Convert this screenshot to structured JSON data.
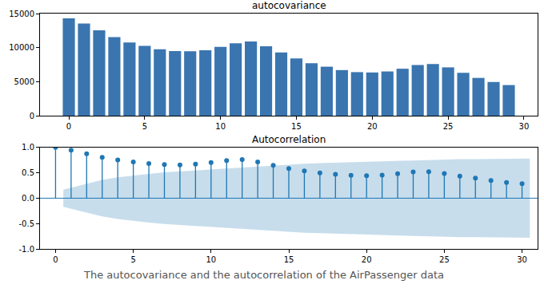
{
  "caption": "The autocovariance and the autocorrelation of the AirPassenger data",
  "chart_data": [
    {
      "type": "bar",
      "title": "autocovariance",
      "x": [
        0,
        1,
        2,
        3,
        4,
        5,
        6,
        7,
        8,
        9,
        10,
        11,
        12,
        13,
        14,
        15,
        16,
        17,
        18,
        19,
        20,
        21,
        22,
        23,
        24,
        25,
        26,
        27,
        28,
        29
      ],
      "values": [
        14300,
        13550,
        12550,
        11550,
        10750,
        10250,
        9750,
        9500,
        9450,
        9600,
        10100,
        10650,
        10900,
        10200,
        9300,
        8400,
        7700,
        7200,
        6700,
        6400,
        6350,
        6500,
        6900,
        7450,
        7600,
        7100,
        6300,
        5550,
        4950,
        4500
      ],
      "color": "#3a75b0",
      "xlim": [
        -1.9,
        30.9
      ],
      "xticks": [
        0,
        5,
        10,
        15,
        20,
        25,
        30
      ],
      "ylim": [
        0,
        15000
      ],
      "yticks": [
        0,
        5000,
        10000,
        15000
      ],
      "grid": false
    },
    {
      "type": "stem",
      "title": "Autocorrelation",
      "x": [
        0,
        1,
        2,
        3,
        4,
        5,
        6,
        7,
        8,
        9,
        10,
        11,
        12,
        13,
        14,
        15,
        16,
        17,
        18,
        19,
        20,
        21,
        22,
        23,
        24,
        25,
        26,
        27,
        28,
        29,
        30
      ],
      "values": [
        1.0,
        0.948,
        0.876,
        0.807,
        0.753,
        0.714,
        0.682,
        0.663,
        0.656,
        0.671,
        0.703,
        0.743,
        0.761,
        0.713,
        0.646,
        0.586,
        0.538,
        0.5,
        0.469,
        0.45,
        0.442,
        0.457,
        0.482,
        0.517,
        0.523,
        0.488,
        0.436,
        0.398,
        0.348,
        0.309,
        0.285
      ],
      "color": "#1f77b4",
      "marker": "circle",
      "confidence_band": {
        "x": [
          0.5,
          2,
          3,
          4,
          5,
          6,
          7,
          8,
          9,
          10,
          11,
          12,
          13,
          14,
          15,
          16,
          17,
          18,
          19,
          20,
          21,
          22,
          23,
          24,
          25,
          26,
          27,
          28,
          29,
          30.5
        ],
        "lower": [
          -0.17,
          -0.28,
          -0.36,
          -0.41,
          -0.45,
          -0.48,
          -0.51,
          -0.53,
          -0.55,
          -0.57,
          -0.59,
          -0.61,
          -0.63,
          -0.65,
          -0.67,
          -0.68,
          -0.69,
          -0.7,
          -0.71,
          -0.72,
          -0.72,
          -0.73,
          -0.74,
          -0.75,
          -0.76,
          -0.77,
          -0.77,
          -0.77,
          -0.78,
          -0.78
        ],
        "upper": [
          0.17,
          0.28,
          0.36,
          0.41,
          0.45,
          0.48,
          0.51,
          0.53,
          0.55,
          0.57,
          0.59,
          0.61,
          0.63,
          0.65,
          0.67,
          0.68,
          0.69,
          0.7,
          0.71,
          0.72,
          0.72,
          0.73,
          0.74,
          0.75,
          0.76,
          0.77,
          0.77,
          0.77,
          0.78,
          0.78
        ]
      },
      "xlim": [
        -1,
        31
      ],
      "xticks": [
        0,
        5,
        10,
        15,
        20,
        25,
        30
      ],
      "ylim": [
        -1,
        1
      ],
      "yticks": [
        {
          "value": -1,
          "label": "-1.0"
        },
        {
          "value": -0.5,
          "label": "-0.5"
        },
        {
          "value": 0,
          "label": "0.0"
        },
        {
          "value": 0.5,
          "label": "0.5"
        },
        {
          "value": 1,
          "label": "1.0"
        }
      ],
      "grid": false
    }
  ]
}
